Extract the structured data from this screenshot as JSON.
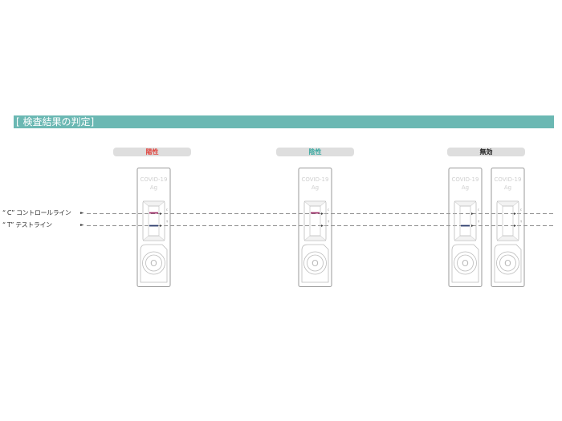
{
  "header": {
    "title": "[ 検査結果の判定]"
  },
  "results": [
    {
      "label": "陽性",
      "color": "#e0443e"
    },
    {
      "label": "陰性",
      "color": "#3aa8a0"
    },
    {
      "label": "無効",
      "color": "#222222"
    }
  ],
  "legend": {
    "c_line_label": "“ C” コントロールライン",
    "t_line_label": "“ T” テストライン",
    "arrow": "►"
  },
  "cassette_text": {
    "line1": "COVID-19",
    "line2": "Ag",
    "c_mark": "c",
    "t_mark": "T",
    "well": "O"
  },
  "colors": {
    "c_line": "#a0306a",
    "t_line": "#2a3a6a",
    "cassette_border": "#9a9a9a",
    "dash": "#8a8a8a"
  },
  "cassettes": [
    {
      "result": "陽性",
      "c_line": true,
      "t_line": true
    },
    {
      "result": "陰性",
      "c_line": true,
      "t_line": false
    },
    {
      "result": "無効",
      "c_line": false,
      "t_line": true
    },
    {
      "result": "無効",
      "c_line": false,
      "t_line": false
    }
  ]
}
